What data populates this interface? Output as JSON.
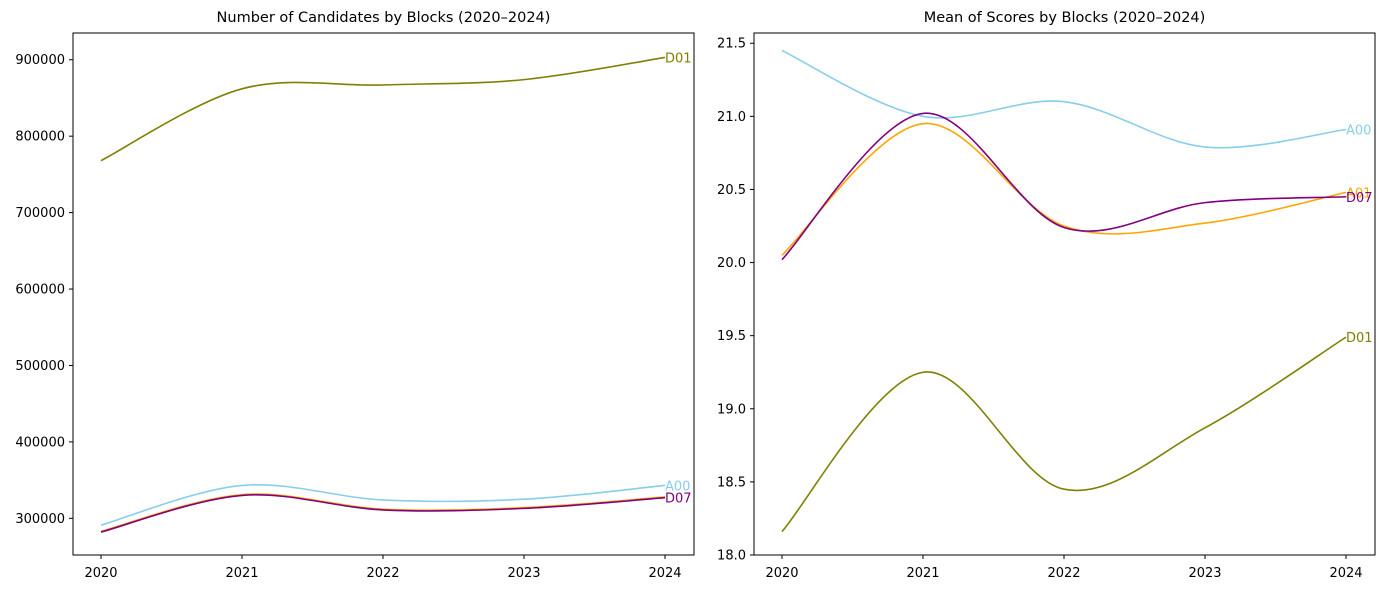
{
  "chart_data": [
    {
      "type": "line",
      "title": "Number of Candidates by Blocks (2020–2024)",
      "xlabel": "",
      "ylabel": "",
      "x": [
        2020,
        2021,
        2022,
        2023,
        2024
      ],
      "xticks": [
        "2020",
        "2021",
        "2022",
        "2023",
        "2024"
      ],
      "ylim": [
        252000,
        935000
      ],
      "yticks": [
        "300000",
        "400000",
        "500000",
        "600000",
        "700000",
        "800000",
        "900000"
      ],
      "ytick_values": [
        300000,
        400000,
        500000,
        600000,
        700000,
        800000,
        900000
      ],
      "grid": false,
      "legend": "none",
      "series": [
        {
          "name": "D01",
          "color": "#808000",
          "values": [
            768000,
            862000,
            867000,
            874000,
            903000
          ]
        },
        {
          "name": "A00",
          "color": "#87ceeb",
          "values": [
            291000,
            343000,
            324000,
            325000,
            343000
          ]
        },
        {
          "name": "A01",
          "color": "#ffa500",
          "values": [
            283000,
            331000,
            312000,
            314000,
            328000
          ]
        },
        {
          "name": "D07",
          "color": "#800080",
          "values": [
            282000,
            330000,
            311000,
            313000,
            327000
          ]
        }
      ],
      "end_labels": [
        "D01",
        "A00",
        "D07"
      ]
    },
    {
      "type": "line",
      "title": "Mean of Scores by Blocks (2020–2024)",
      "xlabel": "",
      "ylabel": "",
      "x": [
        2020,
        2021,
        2022,
        2023,
        2024
      ],
      "xticks": [
        "2020",
        "2021",
        "2022",
        "2023",
        "2024"
      ],
      "ylim": [
        18.0,
        21.57
      ],
      "yticks": [
        "18.0",
        "18.5",
        "19.0",
        "19.5",
        "20.0",
        "20.5",
        "21.0",
        "21.5"
      ],
      "ytick_values": [
        18.0,
        18.5,
        19.0,
        19.5,
        20.0,
        20.5,
        21.0,
        21.5
      ],
      "grid": false,
      "legend": "none",
      "series": [
        {
          "name": "A00",
          "color": "#87ceeb",
          "values": [
            21.45,
            21.0,
            21.1,
            20.79,
            20.91
          ]
        },
        {
          "name": "A01",
          "color": "#ffa500",
          "values": [
            20.05,
            20.95,
            20.25,
            20.27,
            20.48
          ]
        },
        {
          "name": "D07",
          "color": "#800080",
          "values": [
            20.02,
            21.02,
            20.24,
            20.41,
            20.45
          ]
        },
        {
          "name": "D01",
          "color": "#808000",
          "values": [
            18.16,
            19.25,
            18.45,
            18.87,
            19.49
          ]
        }
      ],
      "end_labels": [
        "A00",
        "A01",
        "D07",
        "D01"
      ]
    }
  ]
}
